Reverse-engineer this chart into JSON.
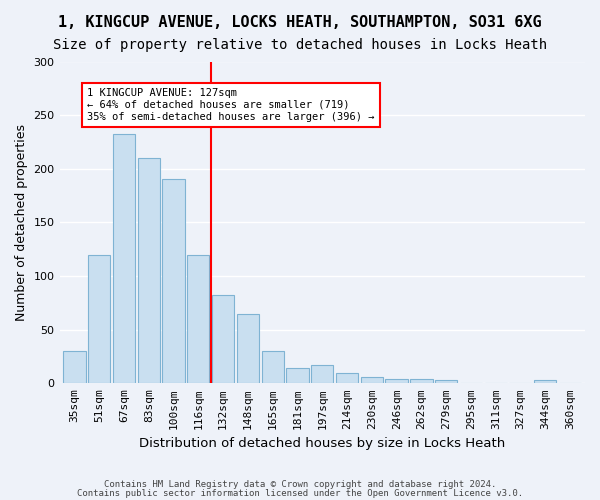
{
  "title1": "1, KINGCUP AVENUE, LOCKS HEATH, SOUTHAMPTON, SO31 6XG",
  "title2": "Size of property relative to detached houses in Locks Heath",
  "xlabel": "Distribution of detached houses by size in Locks Heath",
  "ylabel": "Number of detached properties",
  "footer1": "Contains HM Land Registry data © Crown copyright and database right 2024.",
  "footer2": "Contains public sector information licensed under the Open Government Licence v3.0.",
  "categories": [
    "35sqm",
    "51sqm",
    "67sqm",
    "83sqm",
    "100sqm",
    "116sqm",
    "132sqm",
    "148sqm",
    "165sqm",
    "181sqm",
    "197sqm",
    "214sqm",
    "230sqm",
    "246sqm",
    "262sqm",
    "279sqm",
    "295sqm",
    "311sqm",
    "327sqm",
    "344sqm",
    "360sqm"
  ],
  "values": [
    30,
    120,
    232,
    210,
    190,
    120,
    82,
    65,
    30,
    14,
    17,
    10,
    6,
    4,
    4,
    3,
    0,
    0,
    0,
    3,
    0
  ],
  "bar_color": "#c9dff0",
  "bar_edge_color": "#7fb3d3",
  "ref_line_x": 5.5,
  "ref_line_color": "red",
  "annotation_text": "1 KINGCUP AVENUE: 127sqm\n← 64% of detached houses are smaller (719)\n35% of semi-detached houses are larger (396) →",
  "annotation_box_color": "white",
  "annotation_box_edge": "red",
  "ylim": [
    0,
    300
  ],
  "yticks": [
    0,
    50,
    100,
    150,
    200,
    250,
    300
  ],
  "background_color": "#eef2f9",
  "grid_color": "white",
  "title1_fontsize": 11,
  "title2_fontsize": 10,
  "xlabel_fontsize": 9.5,
  "ylabel_fontsize": 9,
  "tick_fontsize": 8
}
